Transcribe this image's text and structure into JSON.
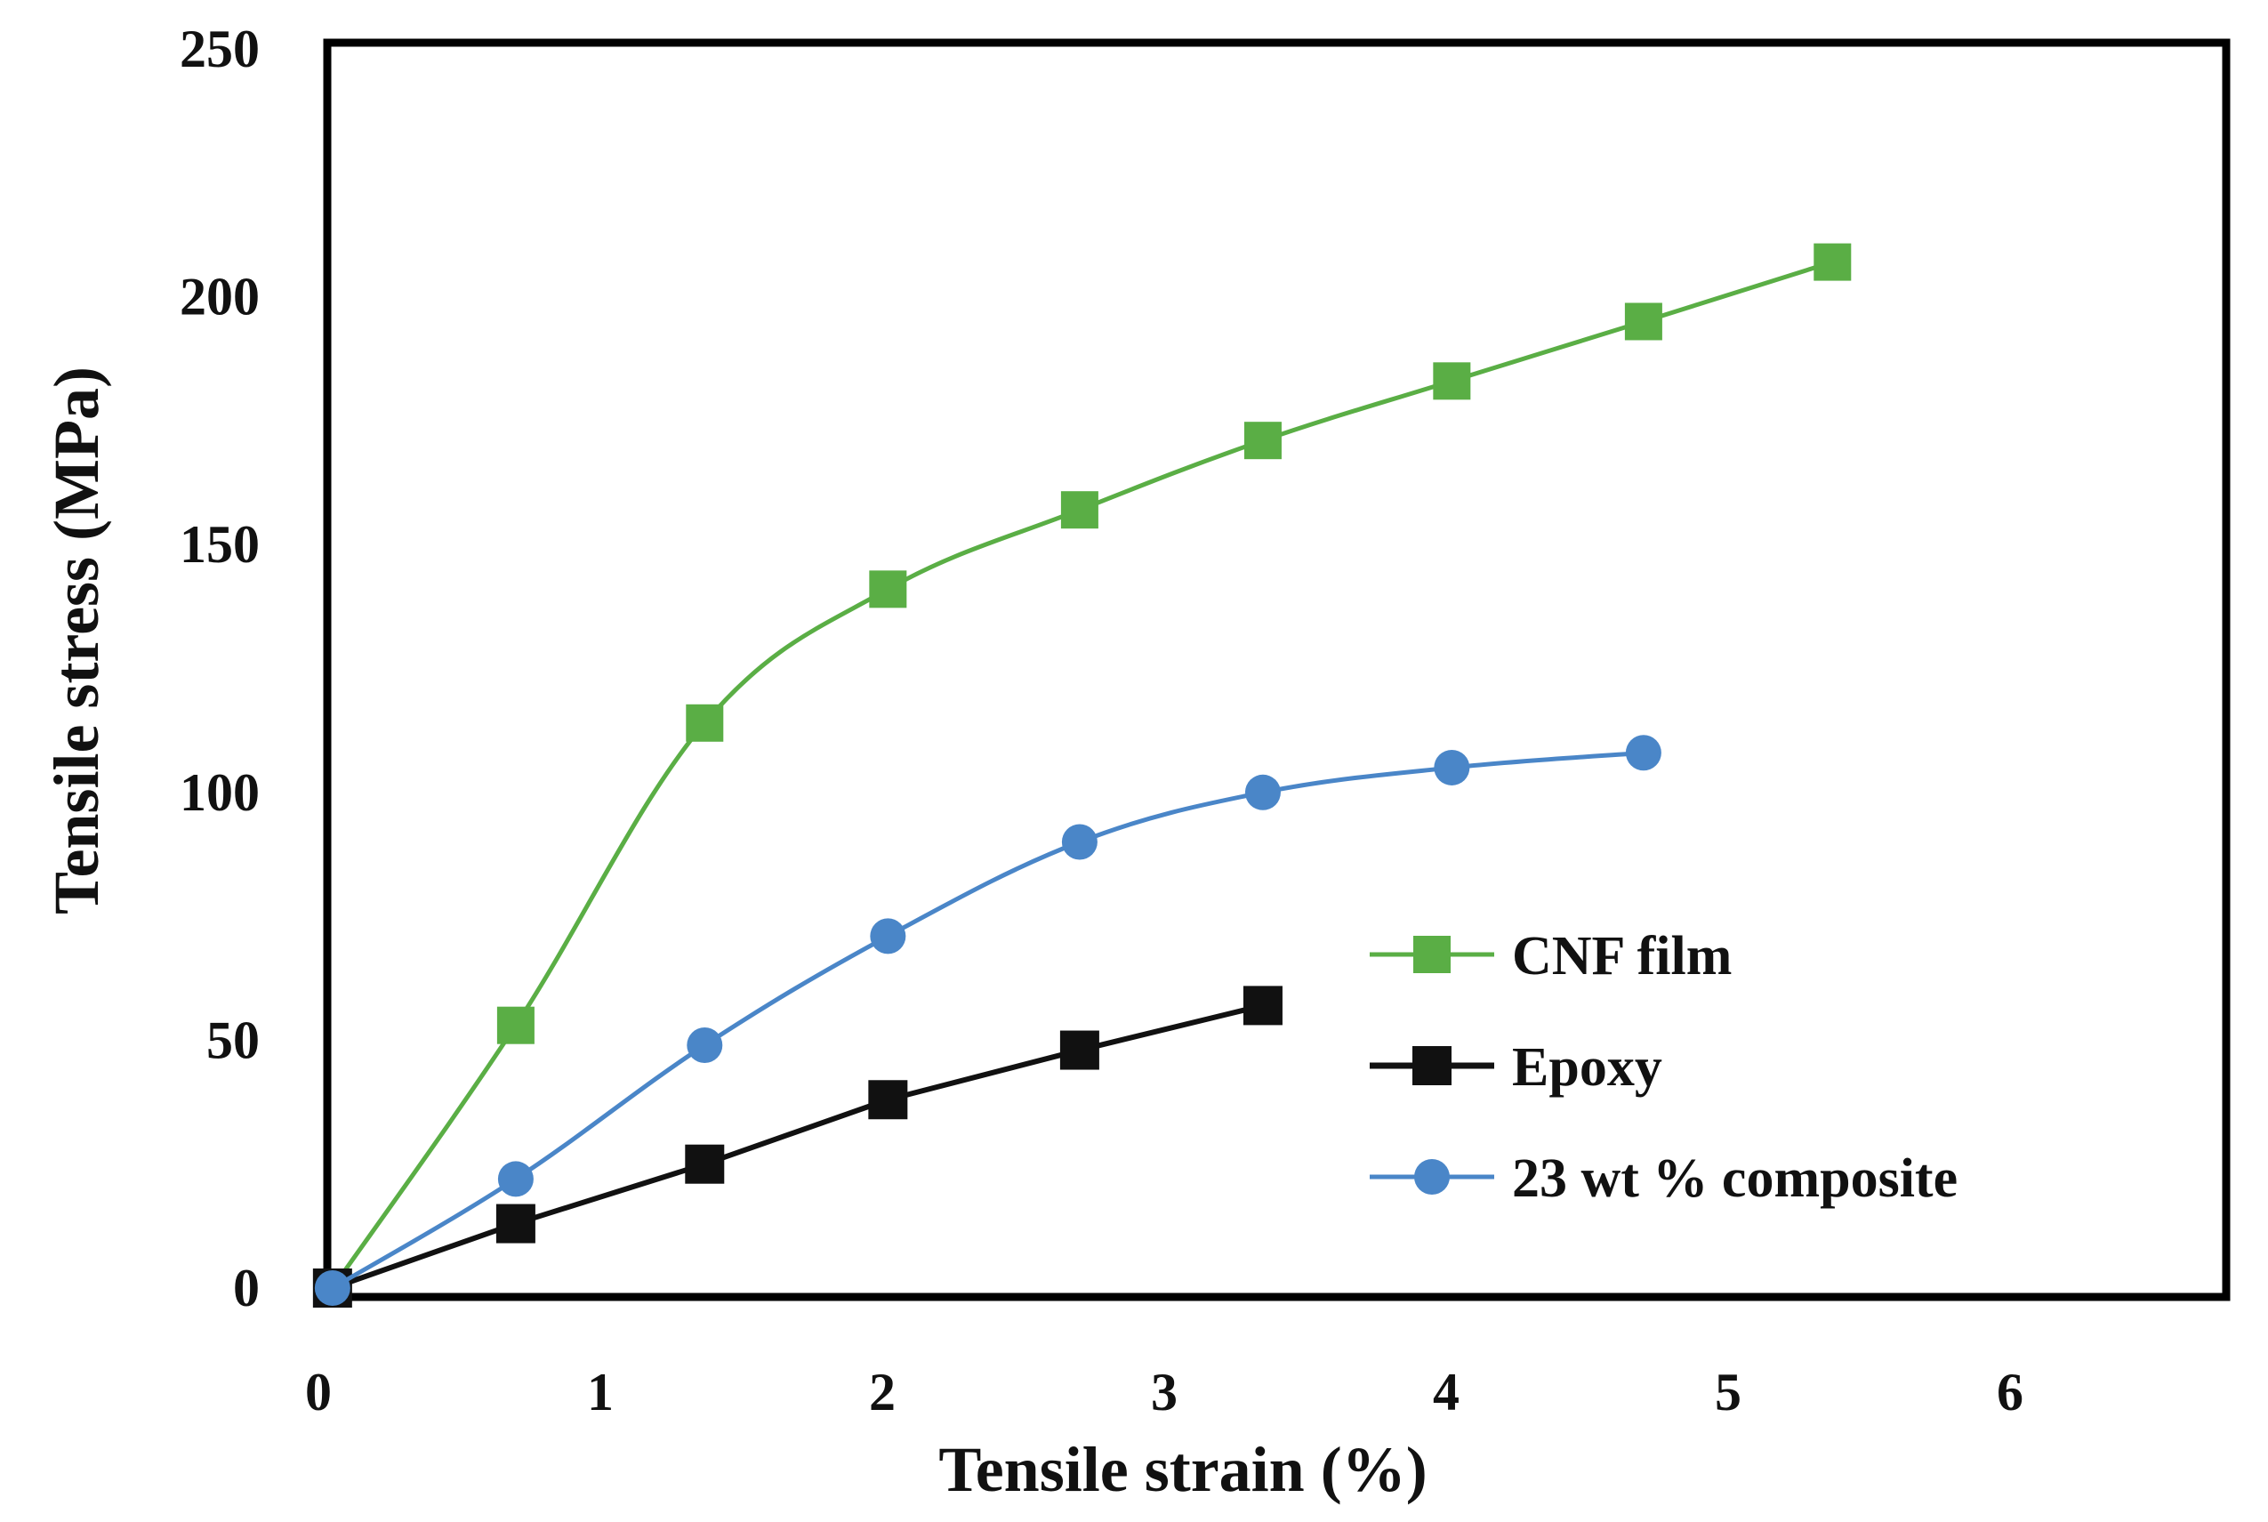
{
  "chart_data": {
    "type": "line",
    "title": "",
    "xlabel": "Tensile strain (%)",
    "ylabel": "Tensile stress (MPa)",
    "xlim": [
      0,
      7
    ],
    "ylim": [
      0,
      250
    ],
    "xticks": [
      0,
      1,
      2,
      3,
      4,
      5,
      6
    ],
    "yticks": [
      0,
      50,
      100,
      150,
      200,
      250
    ],
    "grid": false,
    "legend_position": "middle-right",
    "series": [
      {
        "name": "CNF film",
        "color": "#5aae45",
        "marker": "square",
        "x": [
          0.05,
          0.7,
          1.37,
          2.02,
          2.7,
          3.35,
          4.02,
          4.7,
          5.37
        ],
        "y": [
          0,
          53,
          114,
          141,
          157,
          171,
          183,
          195,
          207
        ]
      },
      {
        "name": "Epoxy",
        "color": "#111111",
        "marker": "square",
        "x": [
          0.05,
          0.7,
          1.37,
          2.02,
          2.7,
          3.35
        ],
        "y": [
          0,
          13,
          25,
          38,
          48,
          57
        ]
      },
      {
        "name": "23 wt % composite",
        "color": "#4a86c8",
        "marker": "circle",
        "x": [
          0.05,
          0.7,
          1.37,
          2.02,
          2.7,
          3.35,
          4.02,
          4.7
        ],
        "y": [
          0,
          22,
          49,
          71,
          90,
          100,
          105,
          108
        ]
      }
    ]
  }
}
